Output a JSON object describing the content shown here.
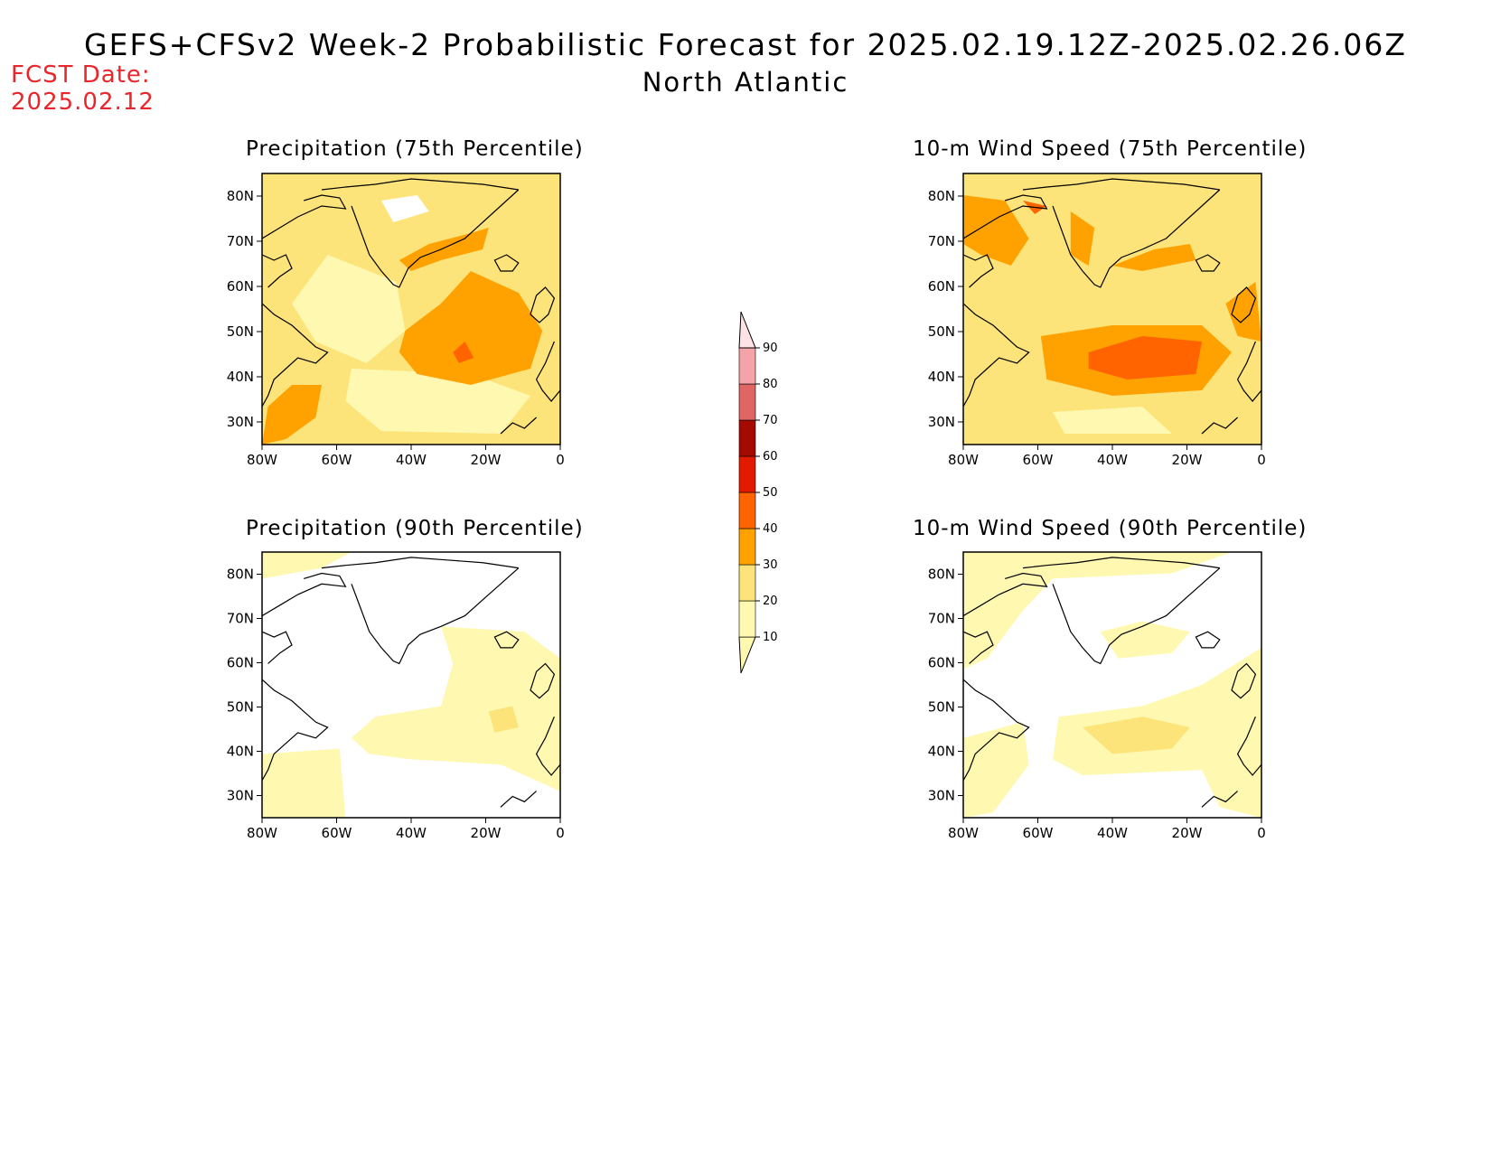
{
  "header": {
    "title": "GEFS+CFSv2 Week-2 Probabilistic Forecast for 2025.02.19.12Z-2025.02.26.06Z",
    "subtitle": "North Atlantic",
    "fcst_label": "FCST Date:",
    "fcst_date": "2025.02.12"
  },
  "lat_ticks": [
    "80N",
    "70N",
    "60N",
    "50N",
    "40N",
    "30N"
  ],
  "lon_ticks": [
    "80W",
    "60W",
    "40W",
    "20W",
    "0"
  ],
  "colorbar": {
    "levels": [
      "10",
      "20",
      "30",
      "40",
      "50",
      "60",
      "70",
      "80",
      "90"
    ],
    "colors": [
      "#fff8b0",
      "#fde47a",
      "#ffa200",
      "#ff6400",
      "#e21b00",
      "#a50a00",
      "#e06666",
      "#f4a3a8",
      "#fde3e6"
    ]
  },
  "panels": [
    {
      "key": "p75",
      "title": "Precipitation (75th Percentile)"
    },
    {
      "key": "w75",
      "title": "10-m Wind Speed (75th Percentile)"
    },
    {
      "key": "p90",
      "title": "Precipitation (90th Percentile)"
    },
    {
      "key": "w90",
      "title": "10-m Wind Speed (90th Percentile)"
    }
  ]
}
